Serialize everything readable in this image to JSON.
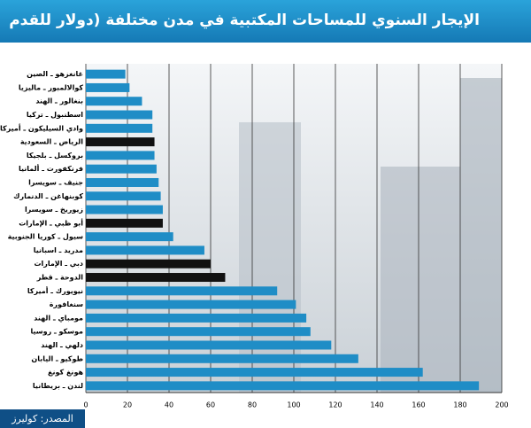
{
  "chart_data": {
    "type": "barh",
    "title": "الإيجار السنوي للمساحات المكتبية في مدن مختلفة (دولار للقدم المربع)",
    "source": "المصدر: كوليرز",
    "categories": [
      "غانغزهو ـ الصين",
      "كوالالمبور ـ ماليزيا",
      "بنغالور ـ الهند",
      "اسطنبول ـ تركيا",
      "وادي السيليكون ـ أميركا",
      "الرياض ـ السعودية",
      "بروكسل ـ بلجيكا",
      "فرنكفورت ـ ألمانيا",
      "جنيف ـ سويسرا",
      "كوبنهاغن ـ الدنمارك",
      "زيوريخ ـ سويسرا",
      "أبو ظبي ـ الإمارات",
      "سيول ـ كوريا الجنوبية",
      "مدريد ـ اسبانيا",
      "دبي ـ الإمارات",
      "الدوحة ـ قطر",
      "نيويورك ـ أميركا",
      "سنغافورة",
      "مومباي ـ الهند",
      "موسكو ـ روسيا",
      "دلهي ـ الهند",
      "طوكيو ـ اليابان",
      "هونغ كونغ",
      "لندن ـ بريطانيا"
    ],
    "values": [
      19,
      21,
      27,
      32,
      32,
      33,
      33,
      34,
      35,
      36,
      37,
      37,
      42,
      57,
      60,
      67,
      92,
      101,
      106,
      108,
      118,
      131,
      162,
      189
    ],
    "colors": [
      "#1f8dc6",
      "#1f8dc6",
      "#1f8dc6",
      "#1f8dc6",
      "#1f8dc6",
      "#111111",
      "#1f8dc6",
      "#1f8dc6",
      "#1f8dc6",
      "#1f8dc6",
      "#1f8dc6",
      "#111111",
      "#1f8dc6",
      "#1f8dc6",
      "#111111",
      "#111111",
      "#1f8dc6",
      "#1f8dc6",
      "#1f8dc6",
      "#1f8dc6",
      "#1f8dc6",
      "#1f8dc6",
      "#1f8dc6",
      "#1f8dc6"
    ],
    "xlim": [
      0,
      200
    ],
    "xticks": [
      0,
      20,
      40,
      60,
      80,
      100,
      120,
      140,
      160,
      180,
      200
    ],
    "grid": true
  }
}
